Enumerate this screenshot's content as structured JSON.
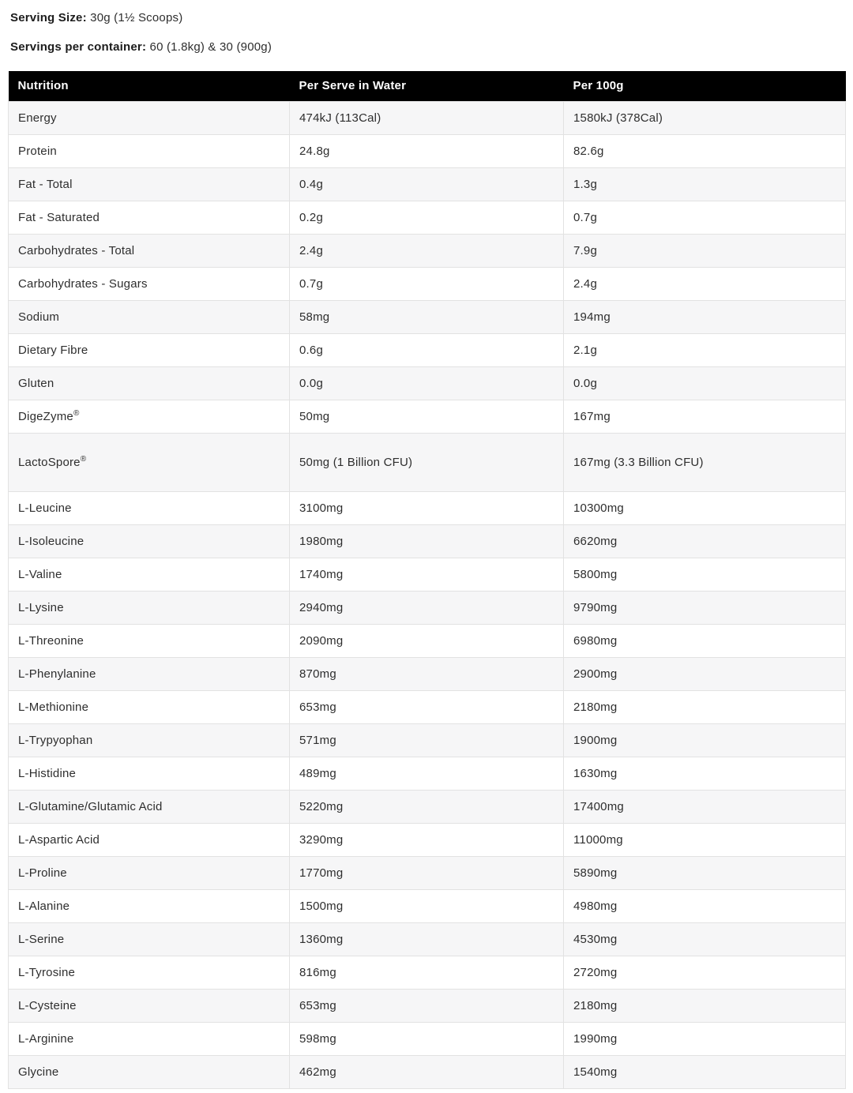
{
  "colors": {
    "header_bg": "#000000",
    "header_text": "#ffffff",
    "row_alt_bg": "#f6f6f7",
    "row_bg": "#ffffff",
    "border": "#e2e2e2",
    "text": "#2e2e2e"
  },
  "serving": {
    "size_label": "Serving Size:",
    "size_value": "30g (1½ Scoops)",
    "container_label": "Servings per container:",
    "container_value": "60 (1.8kg) & 30 (900g)"
  },
  "table": {
    "columns": [
      "Nutrition",
      "Per Serve in Water",
      "Per 100g"
    ],
    "rows": [
      [
        "Energy",
        "474kJ (113Cal)",
        "1580kJ (378Cal)"
      ],
      [
        "Protein",
        "24.8g",
        "82.6g"
      ],
      [
        "Fat - Total",
        "0.4g",
        "1.3g"
      ],
      [
        "Fat - Saturated",
        "0.2g",
        "0.7g"
      ],
      [
        "Carbohydrates - Total",
        "2.4g",
        "7.9g"
      ],
      [
        "Carbohydrates - Sugars",
        "0.7g",
        "2.4g"
      ],
      [
        "Sodium",
        "58mg",
        "194mg"
      ],
      [
        "Dietary Fibre",
        "0.6g",
        "2.1g"
      ],
      [
        "Gluten",
        "0.0g",
        "0.0g"
      ],
      [
        "DigeZyme®",
        "50mg",
        "167mg"
      ],
      [
        "LactoSpore®",
        "50mg (1 Billion CFU)",
        "167mg (3.3 Billion CFU)"
      ],
      [
        "L-Leucine",
        "3100mg",
        "10300mg"
      ],
      [
        "L-Isoleucine",
        "1980mg",
        "6620mg"
      ],
      [
        "L-Valine",
        "1740mg",
        "5800mg"
      ],
      [
        "L-Lysine",
        "2940mg",
        "9790mg"
      ],
      [
        "L-Threonine",
        "2090mg",
        "6980mg"
      ],
      [
        "L-Phenylanine",
        "870mg",
        "2900mg"
      ],
      [
        "L-Methionine",
        "653mg",
        "2180mg"
      ],
      [
        "L-Trypyophan",
        "571mg",
        "1900mg"
      ],
      [
        "L-Histidine",
        "489mg",
        "1630mg"
      ],
      [
        "L-Glutamine/Glutamic Acid",
        "5220mg",
        "17400mg"
      ],
      [
        "L-Aspartic Acid",
        "3290mg",
        "11000mg"
      ],
      [
        "L-Proline",
        "1770mg",
        "5890mg"
      ],
      [
        "L-Alanine",
        "1500mg",
        "4980mg"
      ],
      [
        "L-Serine",
        "1360mg",
        "4530mg"
      ],
      [
        "L-Tyrosine",
        "816mg",
        "2720mg"
      ],
      [
        "L-Cysteine",
        "653mg",
        "2180mg"
      ],
      [
        "L-Arginine",
        "598mg",
        "1990mg"
      ],
      [
        "Glycine",
        "462mg",
        "1540mg"
      ]
    ]
  }
}
